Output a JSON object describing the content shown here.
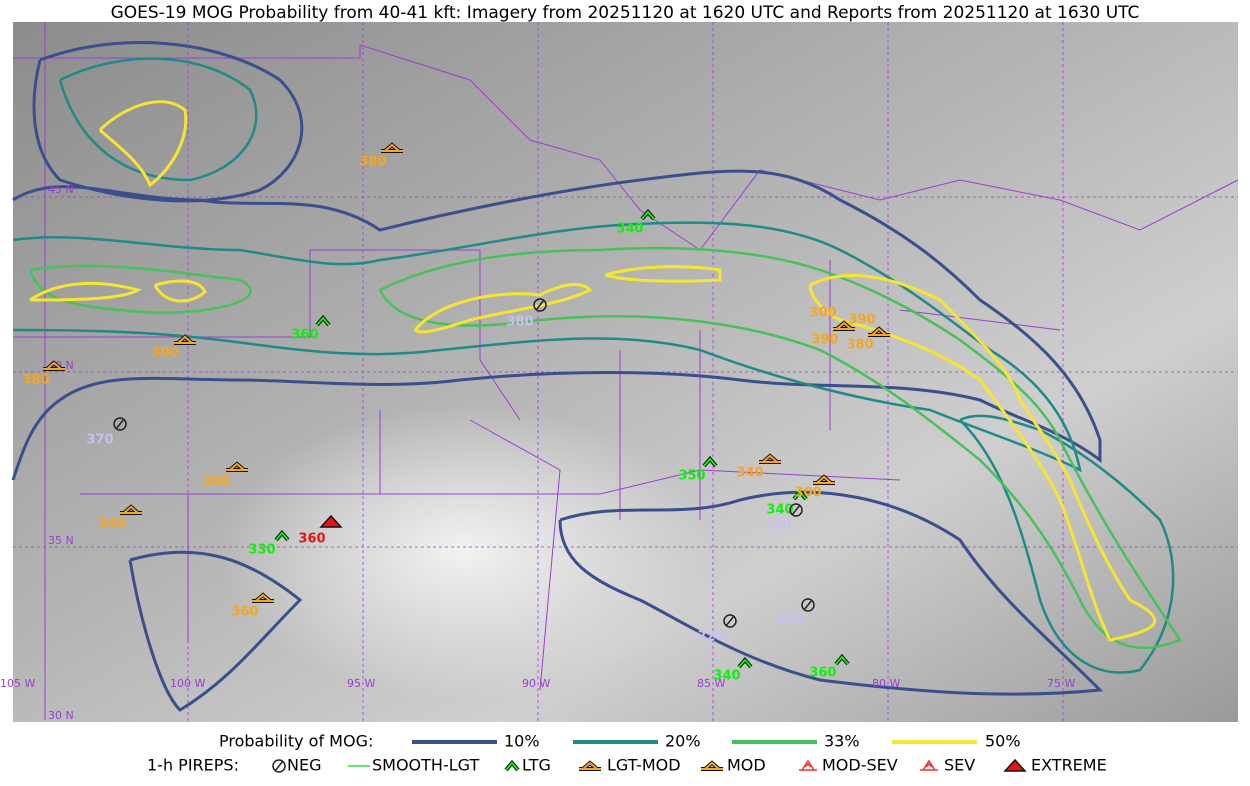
{
  "title": "GOES-19 MOG Probability from 40-41 kft: Imagery from 20251120 at 1620 UTC and Reports from 20251120 at 1630 UTC",
  "legend": {
    "probability_label": "Probability of MOG:",
    "levels": [
      "10%",
      "20%",
      "33%",
      "50%"
    ],
    "pireps_label": "1-h PIREPS:",
    "pireps": [
      "NEG",
      "SMOOTH-LGT",
      "LTG",
      "LGT-MOD",
      "MOD",
      "MOD-SEV",
      "SEV",
      "EXTREME"
    ]
  },
  "grid_labels": [
    "45 N",
    "40 N",
    "35 N",
    "30 N",
    "105 W",
    "100 W",
    "95 W",
    "90 W",
    "85 W",
    "80 W",
    "75 W"
  ],
  "reports": [
    "380",
    "340",
    "360",
    "380",
    "300",
    "380",
    "370",
    "300",
    "340",
    "330",
    "360",
    "360",
    "350",
    "340",
    "340",
    "340",
    "300",
    "300",
    "390",
    "390",
    "380",
    "320",
    "300",
    "340",
    "360"
  ]
}
